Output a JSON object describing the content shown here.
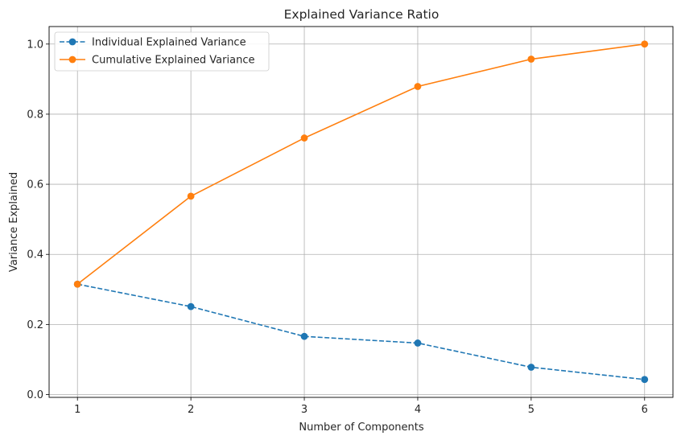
{
  "chart_data": {
    "type": "line",
    "title": "Explained Variance Ratio",
    "xlabel": "Number of Components",
    "ylabel": "Variance Explained",
    "x": [
      1,
      2,
      3,
      4,
      5,
      6
    ],
    "xticks": [
      "1",
      "2",
      "3",
      "4",
      "5",
      "6"
    ],
    "yticks": [
      "0.0",
      "0.2",
      "0.4",
      "0.6",
      "0.8",
      "1.0"
    ],
    "xlim": [
      0.75,
      6.25
    ],
    "ylim": [
      -0.008,
      1.05
    ],
    "grid": true,
    "legend_position": "top-left",
    "series": [
      {
        "name": "Individual Explained Variance",
        "values": [
          0.315,
          0.251,
          0.166,
          0.147,
          0.078,
          0.043
        ],
        "color": "#1f77b4",
        "linestyle": "dashed",
        "marker": "circle"
      },
      {
        "name": "Cumulative Explained Variance",
        "values": [
          0.315,
          0.566,
          0.732,
          0.879,
          0.957,
          1.0
        ],
        "color": "#ff7f0e",
        "linestyle": "solid",
        "marker": "circle"
      }
    ]
  }
}
